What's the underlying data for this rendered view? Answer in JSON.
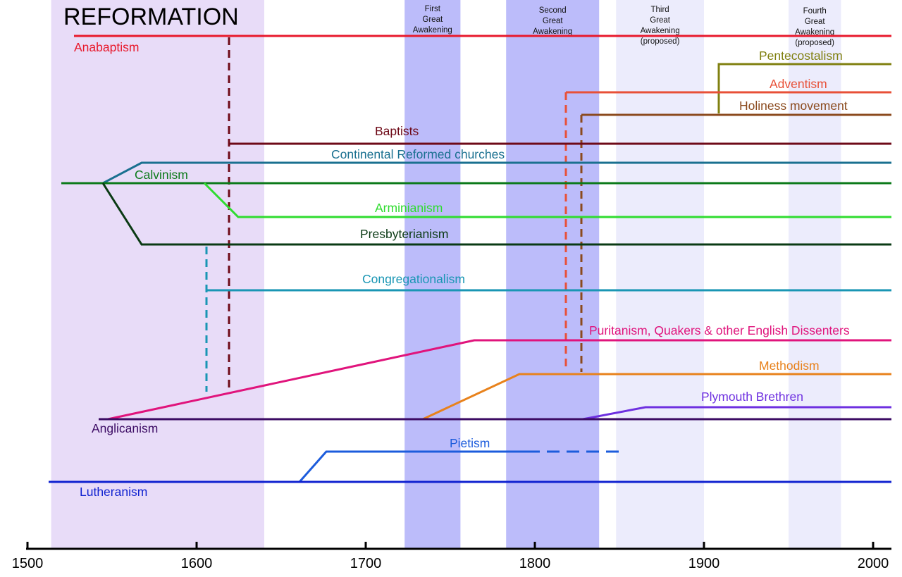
{
  "title": "REFORMATION",
  "axis": {
    "ticks": [
      "1500",
      "1600",
      "1700",
      "1800",
      "1900",
      "2000"
    ]
  },
  "eras": {
    "reformation": {
      "from": 1514,
      "to": 1640,
      "color": "#e8dcf8"
    },
    "awakenings": [
      {
        "lines": [
          "First",
          "Great",
          "Awakening"
        ],
        "from": 1723,
        "to": 1756,
        "color": "#bcbcfa"
      },
      {
        "lines": [
          "Second",
          "Great",
          "Awakening"
        ],
        "from": 1783,
        "to": 1838,
        "color": "#bcbcfa"
      },
      {
        "lines": [
          "Third",
          "Great",
          "Awakening",
          "(proposed)"
        ],
        "from": 1848,
        "to": 1900,
        "color": "#ececfc"
      },
      {
        "lines": [
          "Fourth",
          "Great",
          "Awakening",
          "(proposed)"
        ],
        "from": 1950,
        "to": 1981,
        "color": "#ececfc"
      }
    ]
  },
  "branches": {
    "anabaptism": {
      "label": "Anabaptism",
      "color": "#e8192c"
    },
    "pentecostalism": {
      "label": "Pentecostalism",
      "color": "#808010"
    },
    "adventism": {
      "label": "Adventism",
      "color": "#e85038"
    },
    "holiness": {
      "label": "Holiness movement",
      "color": "#8b4a1e"
    },
    "baptists": {
      "label": "Baptists",
      "color": "#6e0a18"
    },
    "reformed": {
      "label": "Continental Reformed churches",
      "color": "#1a7090"
    },
    "calvinism": {
      "label": "Calvinism",
      "color": "#0b7a1a"
    },
    "arminianism": {
      "label": "Arminianism",
      "color": "#2fdc2f"
    },
    "presbyterianism": {
      "label": "Presbyterianism",
      "color": "#0a3a14"
    },
    "congregationalism": {
      "label": "Congregationalism",
      "color": "#1996b4"
    },
    "puritanism": {
      "label": "Puritanism, Quakers & other English Dissenters",
      "color": "#e0147c"
    },
    "methodism": {
      "label": "Methodism",
      "color": "#e8821c"
    },
    "plymouth": {
      "label": "Plymouth Brethren",
      "color": "#6e30e0"
    },
    "anglicanism": {
      "label": "Anglicanism",
      "color": "#3c0c64"
    },
    "pietism": {
      "label": "Pietism",
      "color": "#1c5cdc"
    },
    "lutheranism": {
      "label": "Lutheranism",
      "color": "#1022d0"
    }
  }
}
